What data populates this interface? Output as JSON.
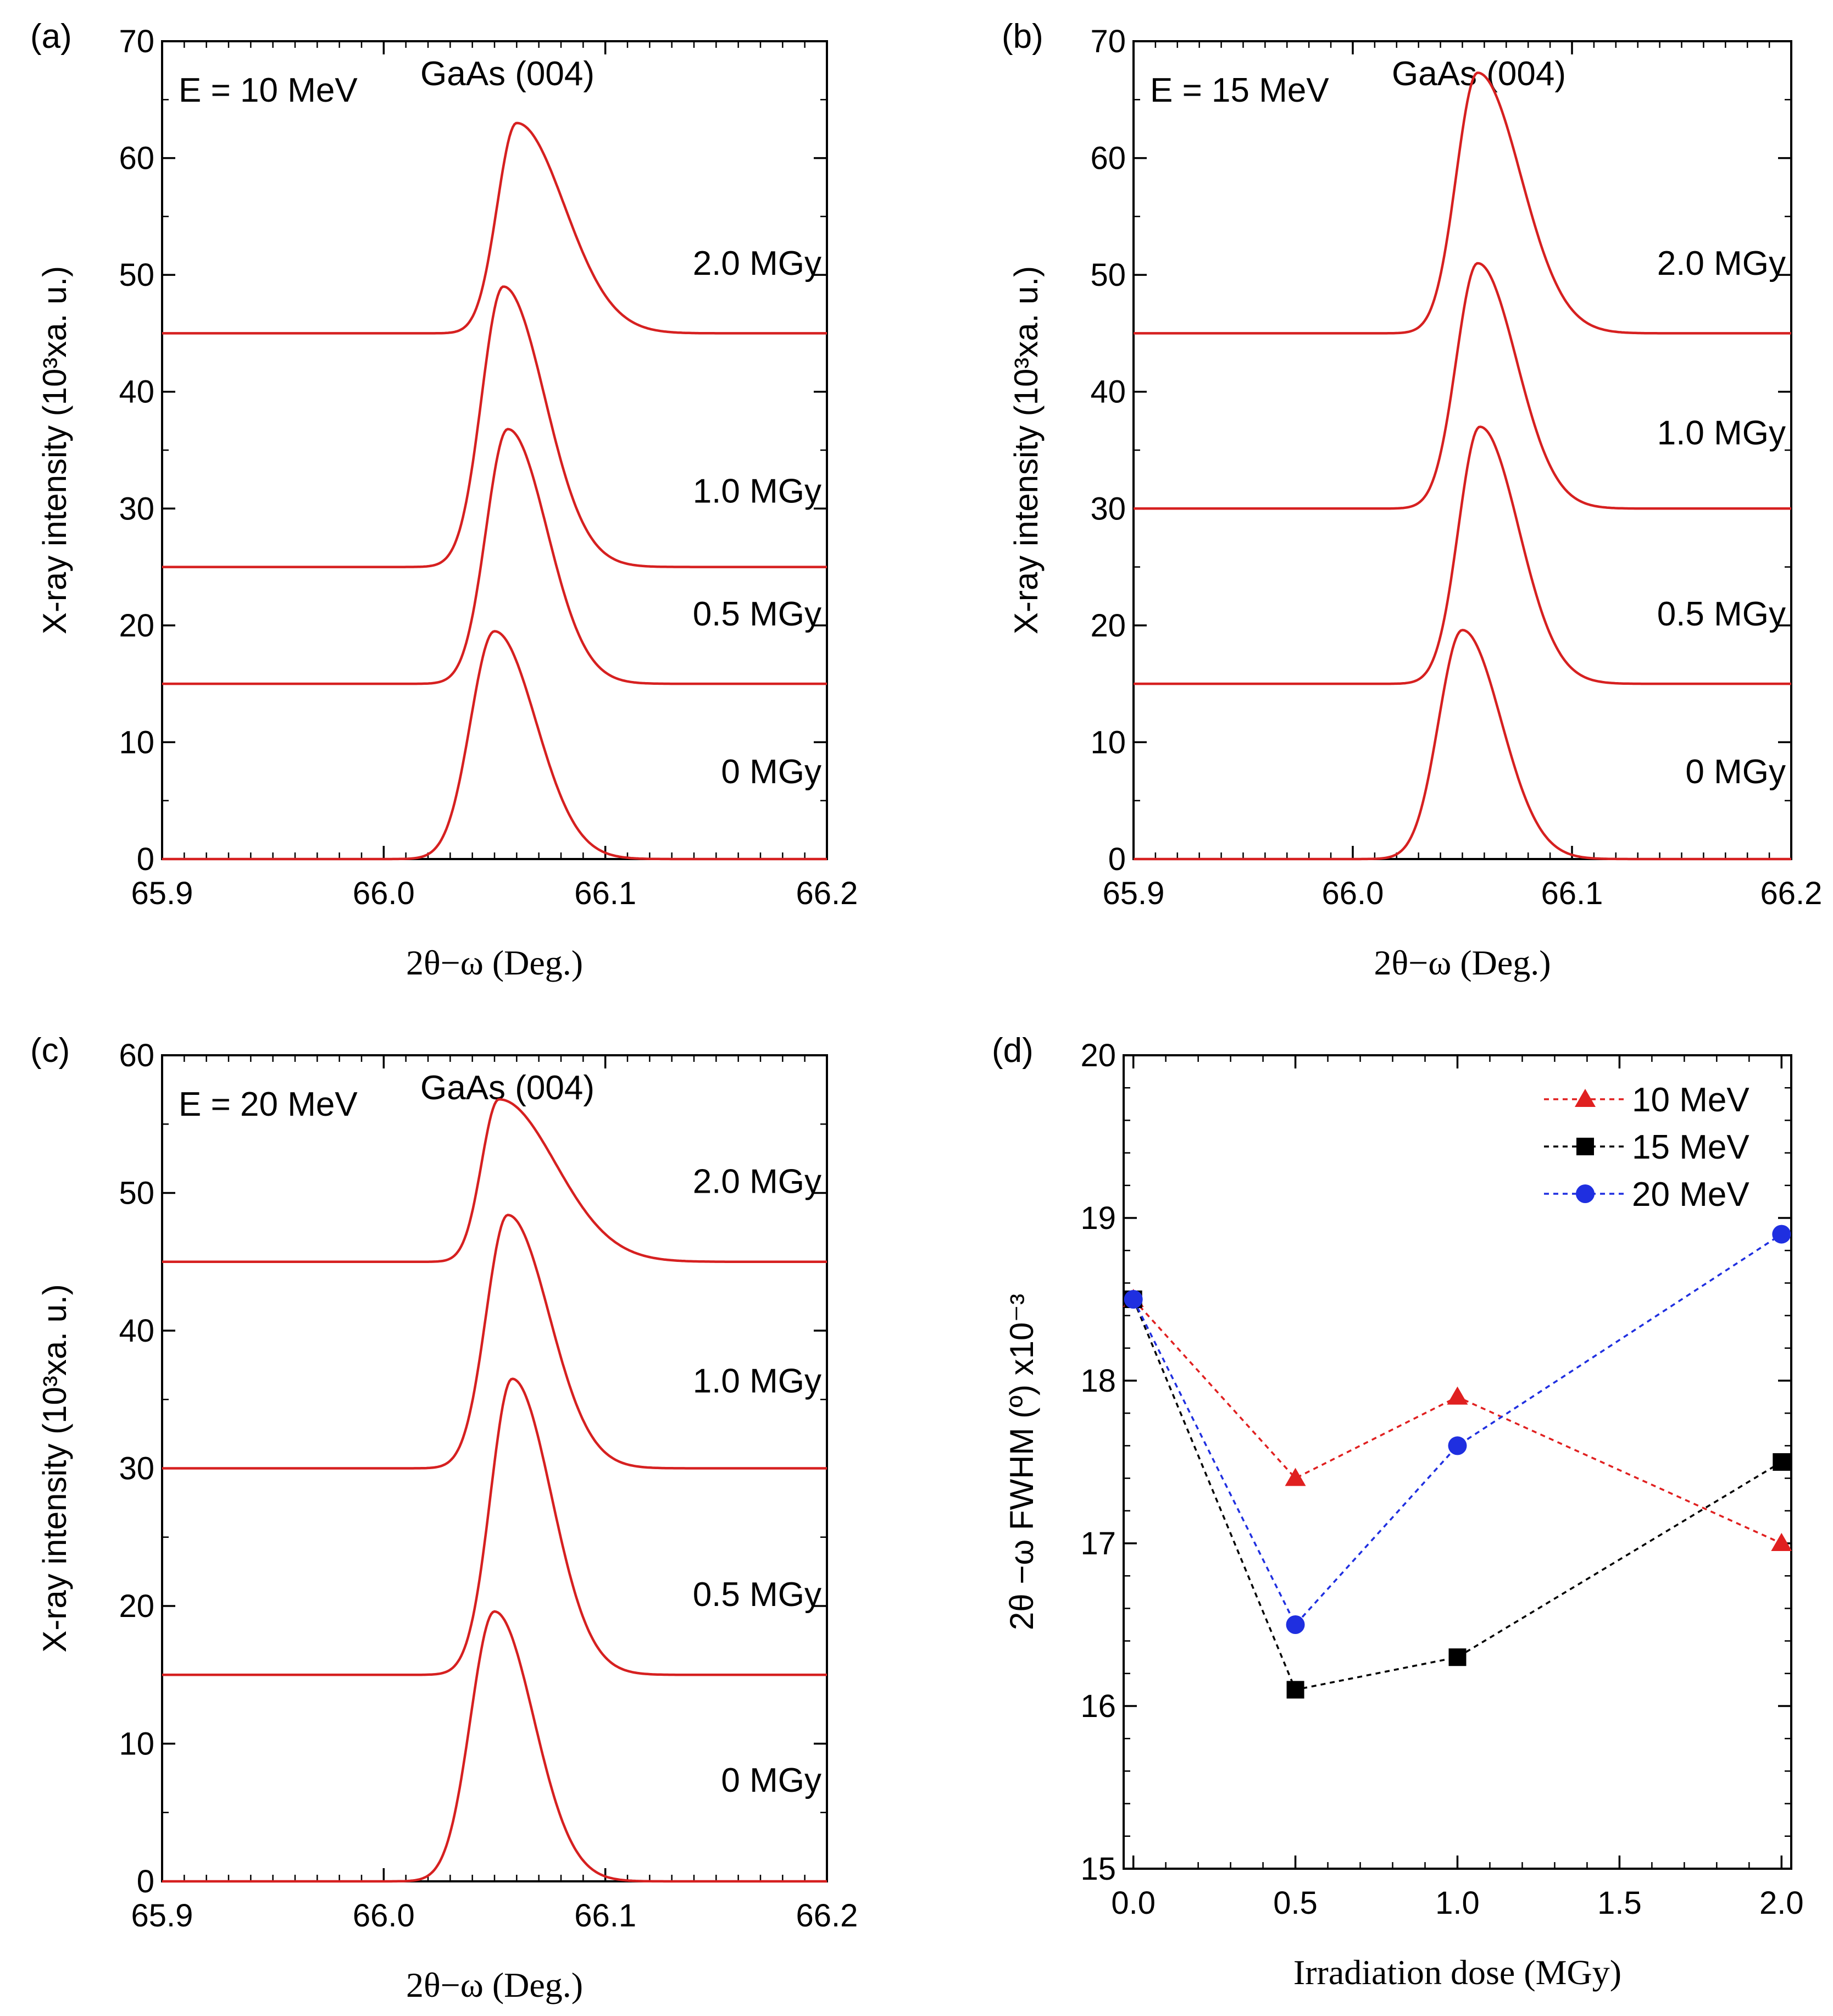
{
  "chart_data": [
    {
      "id": "a",
      "type": "line",
      "panel_label": "(a)",
      "energy_label": "E = 10 MeV",
      "title": "GaAs (004)",
      "xlabel": "2θ−ω (Deg.)",
      "ylabel": "X-ray intensity (10³xa. u.)",
      "xlim": [
        65.9,
        66.2
      ],
      "ylim": [
        0,
        70
      ],
      "xticks": [
        "65.9",
        "66.0",
        "66.1",
        "66.2"
      ],
      "yticks": [
        "0",
        "10",
        "20",
        "30",
        "40",
        "50",
        "60",
        "70"
      ],
      "color": "#d62020",
      "series": [
        {
          "name": "0 MGy",
          "baseline": 0,
          "peak_x": 66.05,
          "peak_height": 19.5,
          "width_left": 0.011,
          "width_right": 0.019
        },
        {
          "name": "0.5 MGy",
          "baseline": 15,
          "peak_x": 66.056,
          "peak_height": 21.8,
          "width_left": 0.01,
          "width_right": 0.018
        },
        {
          "name": "1.0 MGy",
          "baseline": 25,
          "peak_x": 66.054,
          "peak_height": 24.0,
          "width_left": 0.01,
          "width_right": 0.019
        },
        {
          "name": "2.0 MGy",
          "baseline": 45,
          "peak_x": 66.06,
          "peak_height": 18.0,
          "width_left": 0.009,
          "width_right": 0.022
        }
      ]
    },
    {
      "id": "b",
      "type": "line",
      "panel_label": "(b)",
      "energy_label": "E = 15 MeV",
      "title": "GaAs (004)",
      "xlabel": "2θ−ω (Deg.)",
      "ylabel": "X-ray intensity (10³xa. u.)",
      "xlim": [
        65.9,
        66.2
      ],
      "ylim": [
        0,
        70
      ],
      "xticks": [
        "65.9",
        "66.0",
        "66.1",
        "66.2"
      ],
      "yticks": [
        "0",
        "10",
        "20",
        "30",
        "40",
        "50",
        "60",
        "70"
      ],
      "color": "#d62020",
      "series": [
        {
          "name": "0 MGy",
          "baseline": 0,
          "peak_x": 66.05,
          "peak_height": 19.6,
          "width_left": 0.011,
          "width_right": 0.018
        },
        {
          "name": "0.5 MGy",
          "baseline": 15,
          "peak_x": 66.058,
          "peak_height": 22.0,
          "width_left": 0.01,
          "width_right": 0.018
        },
        {
          "name": "1.0 MGy",
          "baseline": 30,
          "peak_x": 66.057,
          "peak_height": 21.0,
          "width_left": 0.01,
          "width_right": 0.018
        },
        {
          "name": "2.0 MGy",
          "baseline": 45,
          "peak_x": 66.057,
          "peak_height": 22.3,
          "width_left": 0.01,
          "width_right": 0.02
        }
      ]
    },
    {
      "id": "c",
      "type": "line",
      "panel_label": "(c)",
      "energy_label": "E = 20 MeV",
      "title": "GaAs (004)",
      "xlabel": "2θ−ω (Deg.)",
      "ylabel": "X-ray intensity (10³xa. u.)",
      "xlim": [
        65.9,
        66.2
      ],
      "ylim": [
        0,
        60
      ],
      "xticks": [
        "65.9",
        "66.0",
        "66.1",
        "66.2"
      ],
      "yticks": [
        "0",
        "10",
        "20",
        "30",
        "40",
        "50",
        "60"
      ],
      "color": "#d62020",
      "series": [
        {
          "name": "0 MGy",
          "baseline": 0,
          "peak_x": 66.05,
          "peak_height": 19.6,
          "width_left": 0.011,
          "width_right": 0.018
        },
        {
          "name": "0.5 MGy",
          "baseline": 15,
          "peak_x": 66.058,
          "peak_height": 21.5,
          "width_left": 0.01,
          "width_right": 0.018
        },
        {
          "name": "1.0 MGy",
          "baseline": 30,
          "peak_x": 66.056,
          "peak_height": 18.4,
          "width_left": 0.01,
          "width_right": 0.019
        },
        {
          "name": "2.0 MGy",
          "baseline": 45,
          "peak_x": 66.052,
          "peak_height": 11.8,
          "width_left": 0.008,
          "width_right": 0.026
        }
      ]
    },
    {
      "id": "d",
      "type": "scatter",
      "panel_label": "(d)",
      "xlabel": "Irradiation dose (MGy)",
      "ylabel": "2θ −ω FWHM (º) x10⁻³",
      "xlim": [
        -0.03,
        2.03
      ],
      "ylim": [
        15,
        20
      ],
      "xticks": [
        "0.0",
        "0.5",
        "1.0",
        "1.5",
        "2.0"
      ],
      "yticks": [
        "15",
        "16",
        "17",
        "18",
        "19",
        "20"
      ],
      "x": [
        0.0,
        0.5,
        1.0,
        2.0
      ],
      "series": [
        {
          "name": "10 MeV",
          "marker": "triangle",
          "color": "#e02020",
          "values": [
            18.5,
            17.4,
            17.9,
            17.0
          ]
        },
        {
          "name": "15 MeV",
          "marker": "square",
          "color": "#000000",
          "values": [
            18.5,
            16.1,
            16.3,
            17.5
          ]
        },
        {
          "name": "20 MeV",
          "marker": "circle",
          "color": "#1f2fe0",
          "values": [
            18.5,
            16.5,
            17.6,
            18.9
          ]
        }
      ]
    }
  ]
}
